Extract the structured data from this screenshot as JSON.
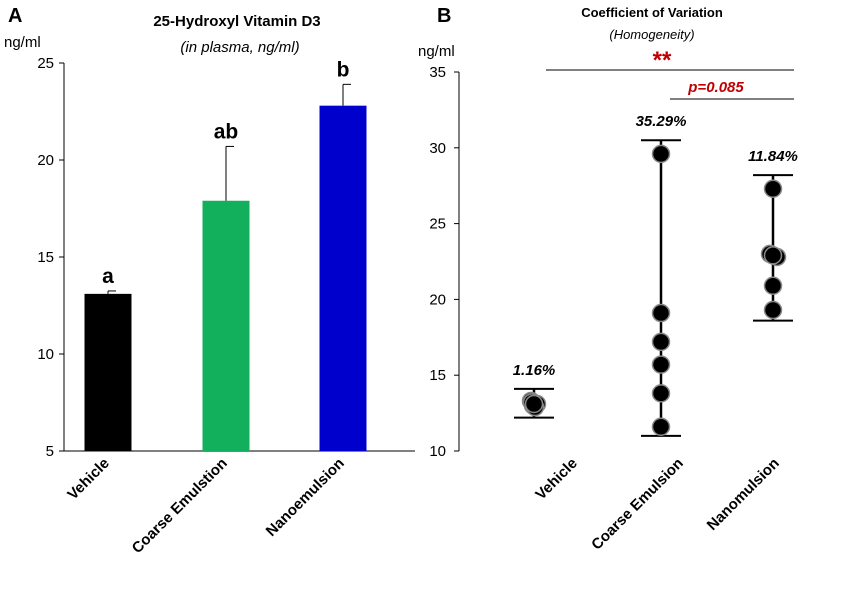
{
  "chart_data": [
    {
      "panel": "A",
      "type": "bar",
      "title": "25-Hydroxyl Vitamin D3",
      "subtitle": "(in plasma, ng/ml)",
      "ylabel": "ng/ml",
      "ylim": [
        5,
        25
      ],
      "yticks": [
        5,
        10,
        15,
        20,
        25
      ],
      "categories": [
        "Vehicle",
        "Coarse Emulstion",
        "Nanoemulsion"
      ],
      "values": [
        13.1,
        17.9,
        22.8
      ],
      "errors": [
        0.15,
        2.8,
        1.1
      ],
      "colors": [
        "#000000",
        "#12b05c",
        "#0000cc"
      ],
      "significance_letters": [
        "a",
        "ab",
        "b"
      ],
      "grid": false
    },
    {
      "panel": "B",
      "type": "scatter",
      "title": "Coefficient of Variation",
      "subtitle": "(Homogeneity)",
      "ylabel": "ng/ml",
      "ylim": [
        10,
        35
      ],
      "yticks": [
        10,
        15,
        20,
        25,
        30,
        35
      ],
      "categories": [
        "Vehicle",
        "Coarse Emulsion",
        "Nanomulsion"
      ],
      "points": [
        [
          13.3,
          13.1,
          13.0,
          12.9,
          13.2,
          13.1
        ],
        [
          29.6,
          19.1,
          17.2,
          15.7,
          13.8,
          11.6
        ],
        [
          27.3,
          23.0,
          22.8,
          22.9,
          20.9,
          19.3
        ]
      ],
      "ranges": [
        [
          12.2,
          14.1
        ],
        [
          11.0,
          30.5
        ],
        [
          18.6,
          28.2
        ]
      ],
      "cv_labels": [
        "1.16%",
        "35.29%",
        "11.84%"
      ],
      "comparisons": [
        {
          "between": [
            "Vehicle",
            "Nanomulsion"
          ],
          "label": "**"
        },
        {
          "between": [
            "Coarse Emulsion",
            "Nanomulsion"
          ],
          "label": "p=0.085"
        }
      ],
      "grid": false
    }
  ],
  "panels": {
    "a_letter": "A",
    "b_letter": "B"
  }
}
